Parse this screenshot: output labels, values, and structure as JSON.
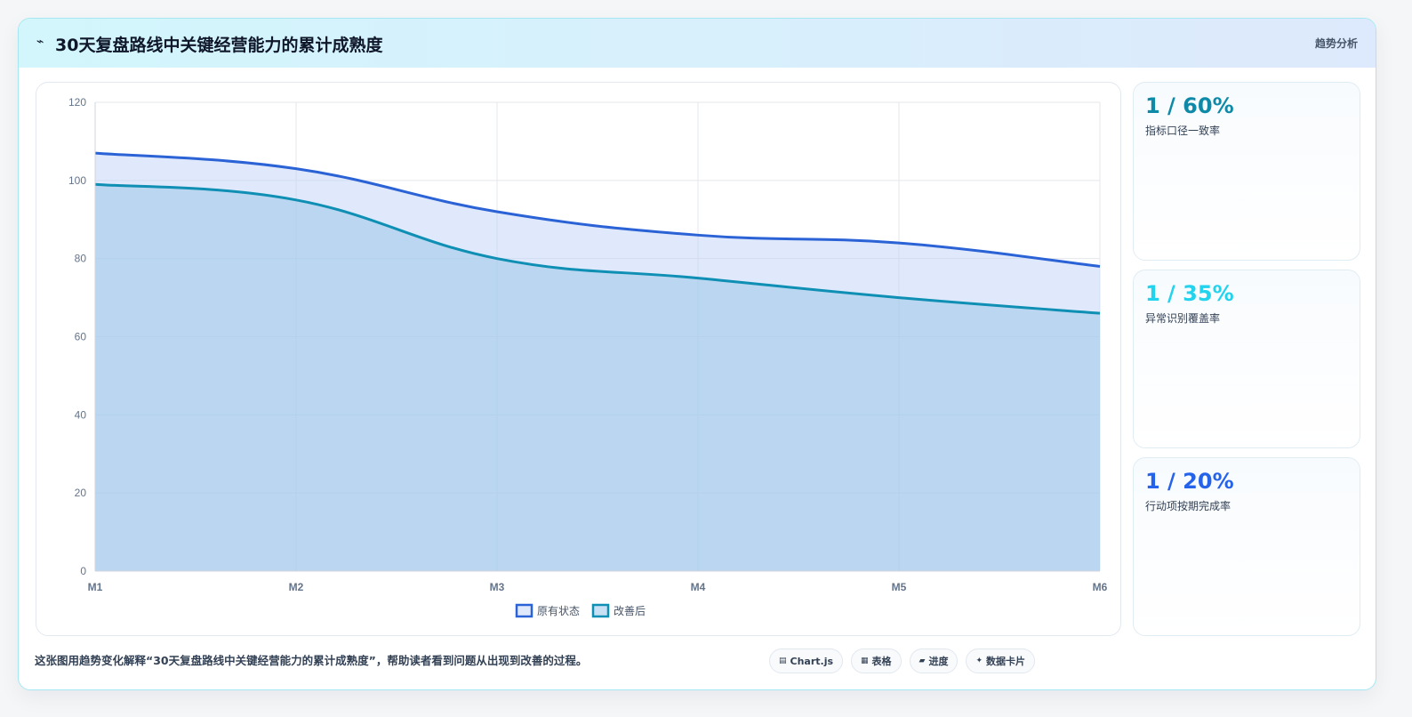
{
  "header": {
    "icon": "⌁",
    "title": "30天复盘路线中关键经营能力的累计成熟度",
    "tag": "趋势分析"
  },
  "chart_data": {
    "type": "area",
    "categories": [
      "M1",
      "M2",
      "M3",
      "M4",
      "M5",
      "M6"
    ],
    "ylim": [
      0,
      120
    ],
    "yticks": [
      0,
      20,
      40,
      60,
      80,
      100,
      120
    ],
    "grid": true,
    "legend_position": "bottom",
    "series": [
      {
        "name": "原有状态",
        "values": [
          107,
          103,
          92,
          86,
          84,
          78
        ],
        "color": "#2b63d6",
        "fill": "rgba(191,211,248,0.5)"
      },
      {
        "name": "改善后",
        "values": [
          99,
          95,
          80,
          75,
          70,
          66
        ],
        "color": "#0e8fb3",
        "fill": "rgba(155,198,234,0.55)"
      }
    ]
  },
  "kpis": [
    {
      "value": "1 / 60%",
      "label": "指标口径一致率",
      "color": "#0e8aa8"
    },
    {
      "value": "1 / 35%",
      "label": "异常识别覆盖率",
      "color": "#22d3ee"
    },
    {
      "value": "1 / 20%",
      "label": "行动项按期完成率",
      "color": "#2563eb"
    }
  ],
  "footer": {
    "note": "这张图用趋势变化解释“30天复盘路线中关键经营能力的累计成熟度”，帮助读者看到问题从出现到改善的过程。",
    "chips": [
      {
        "icon": "▤",
        "label": "Chart.js",
        "icon_name": "chart-icon"
      },
      {
        "icon": "▦",
        "label": "表格",
        "icon_name": "table-icon"
      },
      {
        "icon": "▰",
        "label": "进度",
        "icon_name": "progress-icon"
      },
      {
        "icon": "✦",
        "label": "数据卡片",
        "icon_name": "sparkle-icon"
      }
    ]
  }
}
